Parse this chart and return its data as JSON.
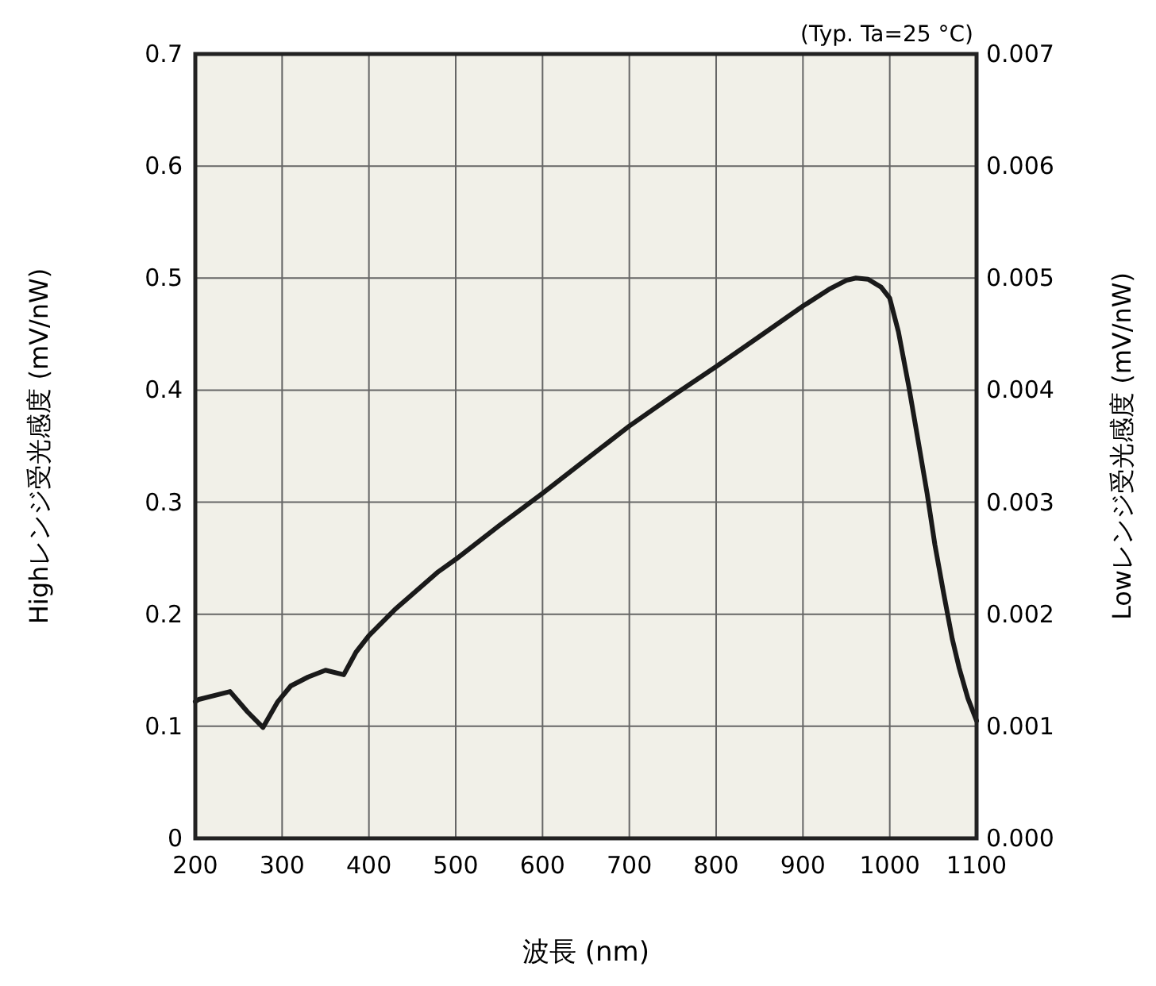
{
  "chart_data": {
    "type": "line",
    "xlabel": "波長 (nm)",
    "ylabel": "Highレンジ受光感度 (mV/nW)",
    "y2label": "Lowレンジ受光感度 (mV/nW)",
    "annotations": [
      "(Typ. Ta=25 °C)"
    ],
    "xlim": [
      200,
      1100
    ],
    "xticks": [
      200,
      300,
      400,
      500,
      600,
      700,
      800,
      900,
      1000,
      1100
    ],
    "ylim": [
      0,
      0.7
    ],
    "yticks": [
      0,
      0.1,
      0.2,
      0.3,
      0.4,
      0.5,
      0.6,
      0.7
    ],
    "y2lim": [
      0,
      0.007
    ],
    "y2ticks": [
      {
        "value": 0,
        "label": "0.000"
      },
      {
        "value": 0.001,
        "label": "0.001"
      },
      {
        "value": 0.002,
        "label": "0.002"
      },
      {
        "value": 0.003,
        "label": "0.003"
      },
      {
        "value": 0.004,
        "label": "0.004"
      },
      {
        "value": 0.005,
        "label": "0.005"
      },
      {
        "value": 0.006,
        "label": "0.006"
      },
      {
        "value": 0.007,
        "label": "0.007"
      }
    ],
    "grid": true,
    "marker": "none",
    "line_style": "solid",
    "series": [
      {
        "color": "#1a1a1a",
        "x": [
          200,
          204,
          240,
          260,
          278,
          295,
          310,
          330,
          350,
          371,
          385,
          400,
          431,
          480,
          500,
          550,
          600,
          650,
          700,
          750,
          800,
          850,
          900,
          930,
          950,
          961,
          975,
          990,
          1000,
          1010,
          1022,
          1032,
          1043,
          1052,
          1062,
          1072,
          1080,
          1090,
          1100
        ],
        "values": [
          0.122,
          0.124,
          0.131,
          0.113,
          0.099,
          0.122,
          0.136,
          0.144,
          0.15,
          0.146,
          0.166,
          0.181,
          0.205,
          0.238,
          0.249,
          0.279,
          0.308,
          0.338,
          0.368,
          0.395,
          0.421,
          0.448,
          0.475,
          0.49,
          0.498,
          0.5,
          0.499,
          0.492,
          0.482,
          0.452,
          0.403,
          0.358,
          0.308,
          0.262,
          0.219,
          0.178,
          0.152,
          0.125,
          0.105
        ]
      }
    ]
  }
}
